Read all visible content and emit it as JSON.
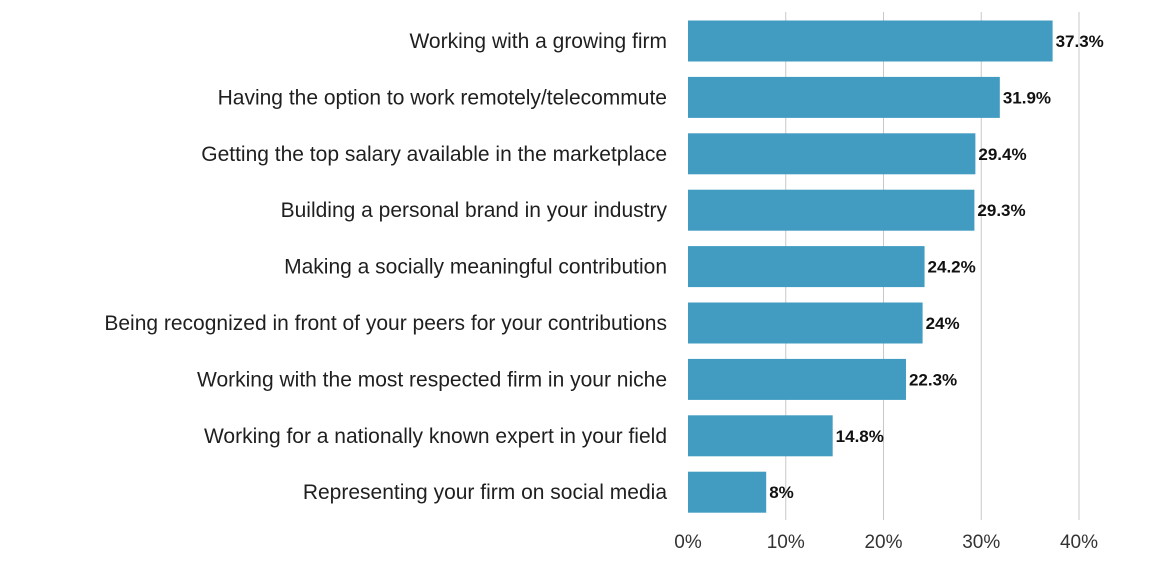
{
  "chart_data": {
    "type": "bar",
    "orientation": "horizontal",
    "categories": [
      "Working with a growing firm",
      "Having the option to work remotely/telecommute",
      "Getting the top salary available in the marketplace",
      "Building a personal brand in your industry",
      "Making a socially meaningful contribution",
      "Being recognized in front of your peers for your contributions",
      "Working with the most respected firm in your niche",
      "Working for a nationally known expert in your field",
      "Representing your firm on social media"
    ],
    "values": [
      37.3,
      31.9,
      29.4,
      29.3,
      24.2,
      24,
      22.3,
      14.8,
      8
    ],
    "value_labels": [
      "37.3%",
      "31.9%",
      "29.4%",
      "29.3%",
      "24.2%",
      "24%",
      "22.3%",
      "14.8%",
      "8%"
    ],
    "xlim": [
      0,
      40
    ],
    "x_ticks": [
      0,
      10,
      20,
      30,
      40
    ],
    "x_tick_labels": [
      "0%",
      "10%",
      "20%",
      "30%",
      "40%"
    ],
    "grid": true,
    "bar_color": "#429cc2",
    "title": "",
    "xlabel": "",
    "ylabel": ""
  }
}
